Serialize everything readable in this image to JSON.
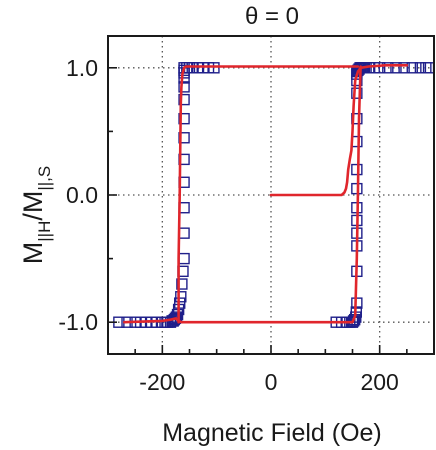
{
  "chart_data": {
    "type": "scatter",
    "title": "θ = 0",
    "xlabel": "Magnetic Field (Oe)",
    "ylabel": {
      "base": "M",
      "sub1": "||H",
      "slash": "/M",
      "sub2": "||,S"
    },
    "xlim": [
      -300,
      300
    ],
    "ylim": [
      -1.25,
      1.25
    ],
    "xticks": [
      -200,
      0,
      200
    ],
    "xtick_labels": [
      "-200",
      "0",
      "200"
    ],
    "yticks": [
      -1.0,
      0.0,
      1.0
    ],
    "ytick_labels": [
      "-1.0",
      "0.0",
      "1.0"
    ],
    "grid": "dotted at major ticks",
    "colors": {
      "data": "#1f1f8a",
      "fit": "#e0262c",
      "axis": "#1a1a1a",
      "grid": "#555555"
    },
    "series": [
      {
        "style": "open-square-markers",
        "x": [
          -280,
          -265,
          -250,
          -240,
          -230,
          -220,
          -210,
          -200,
          -195,
          -190,
          -185,
          -182,
          -180,
          -178,
          -176,
          -174,
          -172,
          -170,
          -168,
          -166,
          -164,
          -162,
          -160,
          -160,
          -160,
          -160,
          -160,
          -160,
          -160,
          -160,
          -160,
          -160,
          -160,
          -160,
          -160,
          -155,
          -150,
          -145,
          -135,
          -125,
          -115,
          -105,
          120,
          130,
          140,
          145,
          150,
          152,
          154,
          156,
          157,
          158,
          158,
          158,
          158,
          158,
          158,
          158,
          158,
          158,
          158,
          158,
          158,
          158,
          158,
          160,
          162,
          164,
          166,
          168,
          170,
          172,
          175,
          180,
          190,
          200,
          215,
          230,
          245,
          260,
          275,
          285,
          290
        ],
        "y": [
          -1.0,
          -1.0,
          -1.0,
          -1.0,
          -1.0,
          -1.0,
          -1.0,
          -1.0,
          -1.0,
          -1.0,
          -1.0,
          -0.99,
          -0.99,
          -0.98,
          -0.97,
          -0.96,
          -0.94,
          -0.9,
          -0.85,
          -0.8,
          -0.7,
          -0.6,
          -0.5,
          -0.3,
          -0.1,
          0.1,
          0.28,
          0.45,
          0.6,
          0.75,
          0.85,
          0.92,
          0.96,
          0.98,
          1.0,
          1.0,
          1.0,
          1.0,
          1.0,
          1.0,
          1.0,
          1.0,
          -1.0,
          -1.0,
          -1.0,
          -1.0,
          -1.0,
          -0.99,
          -0.98,
          -0.96,
          -0.92,
          -0.85,
          -0.6,
          -0.4,
          -0.3,
          -0.2,
          -0.1,
          0.05,
          0.2,
          0.42,
          0.6,
          0.8,
          0.9,
          0.95,
          0.97,
          0.98,
          0.99,
          1.0,
          1.0,
          1.0,
          1.0,
          1.0,
          1.0,
          1.0,
          1.0,
          1.0,
          1.0,
          1.0,
          1.0,
          1.0,
          1.0,
          1.0,
          1.0
        ]
      },
      {
        "style": "line-upper-branch",
        "x": [
          -170,
          -170,
          -168,
          -167,
          -166,
          -165,
          -163,
          -160,
          -157,
          -150,
          0,
          100,
          150,
          160
        ],
        "y": [
          -1.0,
          -0.5,
          0.0,
          0.4,
          0.72,
          0.85,
          0.95,
          1.0,
          1.01,
          1.01,
          1.01,
          1.01,
          1.01,
          1.01
        ]
      },
      {
        "style": "line-lower-branch",
        "x": [
          -270,
          -200,
          -185,
          -175,
          -170,
          -165,
          -155,
          0,
          150,
          155,
          158,
          160,
          162,
          165
        ],
        "y": [
          -1.0,
          -0.99,
          -0.98,
          -0.97,
          -0.99,
          -1.0,
          -1.0,
          -1.0,
          -1.0,
          -0.95,
          -0.5,
          0.0,
          0.6,
          1.01
        ]
      },
      {
        "style": "line-virgin-curve",
        "x": [
          0,
          100,
          130,
          135,
          138,
          140,
          142,
          145,
          148,
          150,
          152,
          155,
          160,
          165,
          180,
          210,
          250
        ],
        "y": [
          0.0,
          0.0,
          0.0,
          0.02,
          0.05,
          0.1,
          0.2,
          0.28,
          0.35,
          0.5,
          0.7,
          0.9,
          0.97,
          1.0,
          1.01,
          1.02,
          1.02
        ]
      }
    ]
  }
}
